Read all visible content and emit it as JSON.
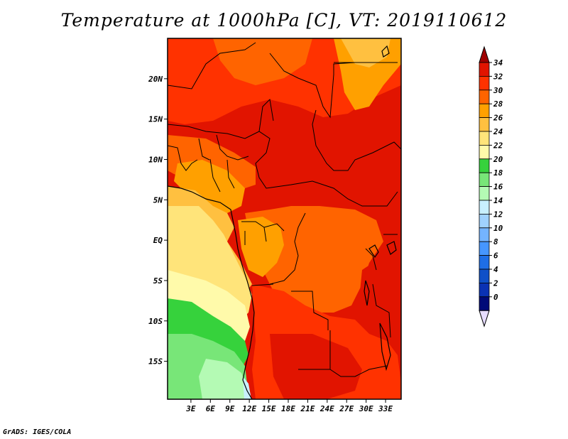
{
  "title": "Temperature at 1000hPa [C], VT: 2019110612",
  "credit": "GrADS: IGES/COLA",
  "lat_ticks": [
    "20N",
    "15N",
    "10N",
    "5N",
    "EQ",
    "5S",
    "10S",
    "15S"
  ],
  "lat_values": [
    20,
    15,
    10,
    5,
    0,
    -5,
    -10,
    -15
  ],
  "lon_ticks": [
    "3E",
    "6E",
    "9E",
    "12E",
    "15E",
    "18E",
    "21E",
    "24E",
    "27E",
    "30E",
    "33E"
  ],
  "lon_values": [
    3,
    6,
    9,
    12,
    15,
    18,
    21,
    24,
    27,
    30,
    33
  ],
  "colorbar": {
    "labels": [
      "34",
      "32",
      "30",
      "28",
      "26",
      "24",
      "22",
      "20",
      "18",
      "16",
      "14",
      "12",
      "10",
      "8",
      "6",
      "4",
      "2",
      "0"
    ],
    "colors": [
      "#a00000",
      "#e11400",
      "#ff3200",
      "#ff6400",
      "#ffa000",
      "#ffc040",
      "#ffe47a",
      "#fffaaa",
      "#36d23c",
      "#78e678",
      "#b4fab4",
      "#c8f0ff",
      "#a0d2ff",
      "#74b4ff",
      "#4696ff",
      "#1e6ee6",
      "#0f50c8",
      "#0a32b4",
      "#000a78",
      "#e6dcff"
    ]
  },
  "field_colors": {
    "hot34": "#e11400",
    "hot32": "#ff3200",
    "warm30": "#ff6400",
    "warm28": "#ffa000",
    "warm26": "#ffc040",
    "mild24": "#ffe47a",
    "mild22": "#fffaaa",
    "green20": "#36d23c",
    "green18": "#78e678",
    "green16": "#b4fab4",
    "ocean14": "#c8f0ff"
  }
}
